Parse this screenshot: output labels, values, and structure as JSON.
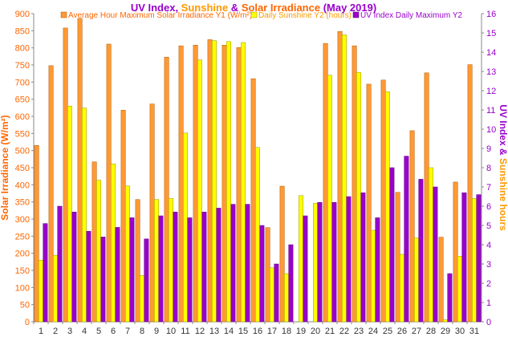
{
  "chart_data": {
    "type": "bar",
    "title_parts": [
      {
        "text": "UV Index",
        "color": "#9900cc"
      },
      {
        "text": ", ",
        "color": "#9900cc"
      },
      {
        "text": "Sunshine",
        "color": "#ff9900"
      },
      {
        "text": " & ",
        "color": "#9900cc"
      },
      {
        "text": "Solar Irradiance",
        "color": "#ff6600"
      },
      {
        "text": " (May 2019)",
        "color": "#9900cc"
      }
    ],
    "ylabel_left": "Solar Irradiance (W/m²)",
    "ylabel_right_parts": [
      {
        "text": "UV Index",
        "color": "#9900cc"
      },
      {
        "text": " & ",
        "color": "#9900cc"
      },
      {
        "text": "Sunshine hours",
        "color": "#ff9900"
      }
    ],
    "y_left_range": [
      0,
      900
    ],
    "y_left_ticks": [
      0,
      50,
      100,
      150,
      200,
      250,
      300,
      350,
      400,
      450,
      500,
      550,
      600,
      650,
      700,
      750,
      800,
      850,
      900
    ],
    "y_right_range": [
      0,
      16
    ],
    "y_right_ticks": [
      0,
      1,
      2,
      3,
      4,
      5,
      6,
      7,
      8,
      9,
      10,
      11,
      12,
      13,
      14,
      15,
      16
    ],
    "grid": false,
    "legend_position": "top",
    "categories": [
      "1",
      "2",
      "3",
      "4",
      "5",
      "6",
      "7",
      "8",
      "9",
      "10",
      "11",
      "12",
      "13",
      "14",
      "15",
      "16",
      "17",
      "18",
      "19",
      "20",
      "21",
      "22",
      "23",
      "24",
      "25",
      "26",
      "27",
      "28",
      "29",
      "30",
      "31"
    ],
    "series": [
      {
        "name": "Average Hour Maximum Solar Irradiance Y1 (W/m²)",
        "axis": "left",
        "color": "#ff9933",
        "stroke": "#b35900",
        "text_color": "#ff6600",
        "values": [
          515,
          748,
          858,
          886,
          467,
          811,
          618,
          357,
          636,
          773,
          806,
          808,
          824,
          808,
          801,
          710,
          275,
          396,
          0,
          0,
          813,
          848,
          806,
          694,
          706,
          378,
          558,
          727,
          247,
          408,
          751
        ]
      },
      {
        "name": "Daily Sunshine Y2 (hours)",
        "axis": "right",
        "color": "#ffff00",
        "stroke": "#999900",
        "text_color": "#ff9900",
        "values": [
          3.2,
          3.45,
          11.2,
          11.1,
          7.35,
          8.2,
          7.05,
          2.4,
          6.35,
          6.4,
          9.8,
          13.6,
          14.6,
          14.55,
          14.5,
          9.05,
          2.8,
          2.5,
          6.55,
          6.15,
          12.8,
          14.9,
          12.95,
          4.75,
          11.95,
          3.5,
          4.35,
          8.0,
          0.1,
          3.4,
          6.4
        ]
      },
      {
        "name": "UV Index Daily Maximum Y2",
        "axis": "right",
        "color": "#9900cc",
        "stroke": "#5c007a",
        "text_color": "#9900cc",
        "values": [
          5.1,
          6.0,
          5.7,
          4.7,
          4.4,
          4.9,
          5.4,
          4.3,
          5.5,
          5.7,
          5.4,
          5.7,
          5.9,
          6.1,
          6.1,
          5.0,
          3.0,
          4.0,
          5.5,
          6.2,
          6.2,
          6.5,
          6.7,
          5.4,
          8.0,
          8.6,
          7.4,
          7.0,
          2.5,
          6.7,
          6.6
        ]
      }
    ]
  }
}
